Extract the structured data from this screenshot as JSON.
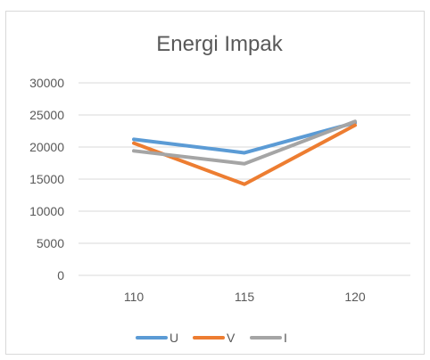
{
  "chart_data": {
    "type": "line",
    "title": "Energi Impak",
    "categories": [
      "110",
      "115",
      "120"
    ],
    "y_ticks": [
      "0",
      "5000",
      "10000",
      "15000",
      "20000",
      "25000",
      "30000"
    ],
    "ylim": [
      0,
      30000
    ],
    "grid": true,
    "legend_position": "bottom",
    "series": [
      {
        "name": "U",
        "color": "#5B9BD5",
        "values": [
          21200,
          19100,
          23800
        ]
      },
      {
        "name": "V",
        "color": "#ED7D31",
        "values": [
          20600,
          14200,
          23400
        ]
      },
      {
        "name": "I",
        "color": "#A5A5A5",
        "values": [
          19400,
          17400,
          24000
        ]
      }
    ]
  }
}
